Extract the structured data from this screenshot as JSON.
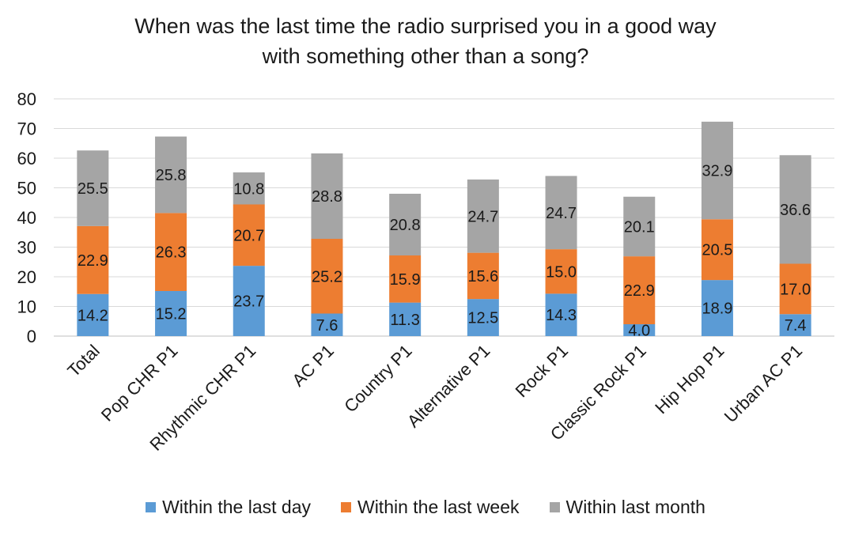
{
  "chart_data": {
    "type": "bar",
    "stacked": true,
    "title_lines": [
      "When was the last time the radio surprised you in a good way",
      "with something other than a song?"
    ],
    "categories": [
      "Total",
      "Pop CHR P1",
      "Rhythmic CHR P1",
      "AC P1",
      "Country P1",
      "Alternative P1",
      "Rock P1",
      "Classic Rock P1",
      "Hip Hop P1",
      "Urban AC P1"
    ],
    "series": [
      {
        "name": "Within the last day",
        "color": "#5b9bd5",
        "values": [
          14.2,
          15.2,
          23.7,
          7.6,
          11.3,
          12.5,
          14.3,
          4.0,
          18.9,
          7.4
        ],
        "labels": [
          "14.2",
          "15.2",
          "23.7",
          "7.6",
          "11.3",
          "12.5",
          "14.3",
          "4.0",
          "18.9",
          "7.4"
        ]
      },
      {
        "name": "Within the last week",
        "color": "#ed7d31",
        "values": [
          22.9,
          26.3,
          20.7,
          25.2,
          15.9,
          15.6,
          15.0,
          22.9,
          20.5,
          17.0
        ],
        "labels": [
          "22.9",
          "26.3",
          "20.7",
          "25.2",
          "15.9",
          "15.6",
          "15.0",
          "22.9",
          "20.5",
          "17.0"
        ]
      },
      {
        "name": "Within last month",
        "color": "#a5a5a5",
        "values": [
          25.5,
          25.8,
          10.8,
          28.8,
          20.8,
          24.7,
          24.7,
          20.1,
          32.9,
          36.6
        ],
        "labels": [
          "25.5",
          "25.8",
          "10.8",
          "28.8",
          "20.8",
          "24.7",
          "24.7",
          "20.1",
          "32.9",
          "36.6"
        ]
      }
    ],
    "ylim": [
      0,
      80
    ],
    "yticks": [
      0,
      10,
      20,
      30,
      40,
      50,
      60,
      70,
      80
    ],
    "ytick_labels": [
      "0",
      "10",
      "20",
      "30",
      "40",
      "50",
      "60",
      "70",
      "80"
    ],
    "xlabel": "",
    "ylabel": "",
    "grid": true,
    "legend_position": "bottom"
  }
}
